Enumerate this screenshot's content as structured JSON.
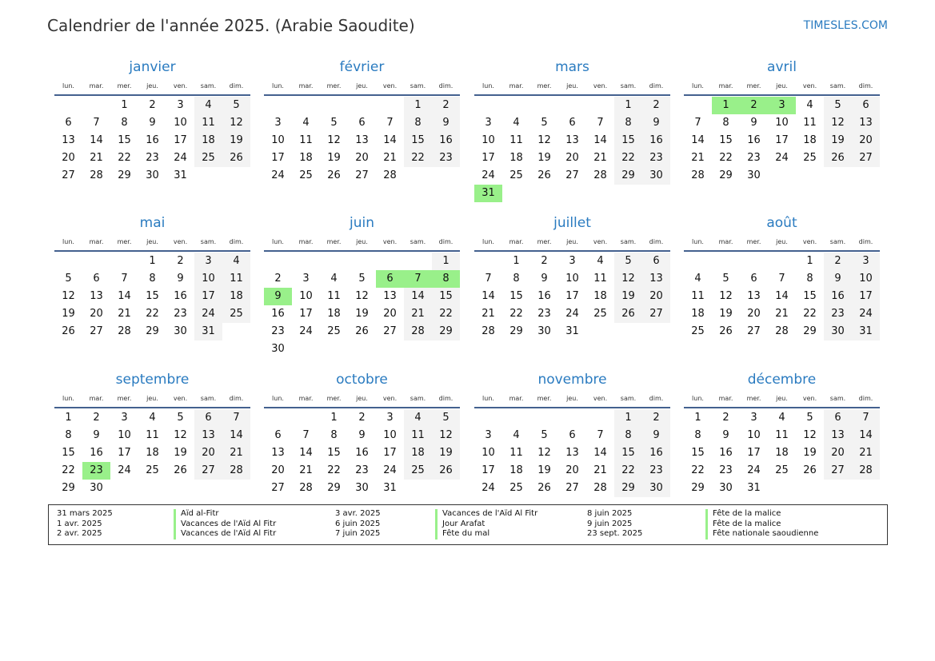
{
  "title": "Calendrier de l'année 2025. (Arabie Saoudite)",
  "site": "TIMESLES.COM",
  "day_names": [
    "lun.",
    "mar.",
    "mer.",
    "jeu.",
    "ven.",
    "sam.",
    "dim."
  ],
  "colors": {
    "accent": "#2a7bc0",
    "holiday": "#99f08a",
    "weekend": "#f3f3f3",
    "rule": "#44618f"
  },
  "months": [
    {
      "name": "janvier",
      "first_weekday": 3,
      "days": 31,
      "holidays": []
    },
    {
      "name": "février",
      "first_weekday": 6,
      "days": 28,
      "holidays": []
    },
    {
      "name": "mars",
      "first_weekday": 6,
      "days": 31,
      "holidays": [
        31
      ]
    },
    {
      "name": "avril",
      "first_weekday": 2,
      "days": 30,
      "holidays": [
        1,
        2,
        3
      ]
    },
    {
      "name": "mai",
      "first_weekday": 4,
      "days": 31,
      "holidays": []
    },
    {
      "name": "juin",
      "first_weekday": 7,
      "days": 30,
      "holidays": [
        6,
        7,
        8,
        9
      ]
    },
    {
      "name": "juillet",
      "first_weekday": 2,
      "days": 31,
      "holidays": []
    },
    {
      "name": "août",
      "first_weekday": 5,
      "days": 31,
      "holidays": []
    },
    {
      "name": "septembre",
      "first_weekday": 1,
      "days": 30,
      "holidays": [
        23
      ]
    },
    {
      "name": "octobre",
      "first_weekday": 3,
      "days": 31,
      "holidays": []
    },
    {
      "name": "novembre",
      "first_weekday": 6,
      "days": 30,
      "holidays": []
    },
    {
      "name": "décembre",
      "first_weekday": 1,
      "days": 31,
      "holidays": []
    }
  ],
  "legend": [
    [
      {
        "date": "31 mars 2025",
        "name": "Aïd al-Fitr"
      },
      {
        "date": "1 avr. 2025",
        "name": "Vacances de l'Aïd Al Fitr"
      },
      {
        "date": "2 avr. 2025",
        "name": "Vacances de l'Aïd Al Fitr"
      }
    ],
    [
      {
        "date": "3 avr. 2025",
        "name": "Vacances de l'Aïd Al Fitr"
      },
      {
        "date": "6 juin 2025",
        "name": "Jour Arafat"
      },
      {
        "date": "7 juin 2025",
        "name": "Fête du mal"
      }
    ],
    [
      {
        "date": "8 juin 2025",
        "name": "Fête de la malice"
      },
      {
        "date": "9 juin 2025",
        "name": "Fête de la malice"
      },
      {
        "date": "23 sept. 2025",
        "name": "Fête nationale saoudienne"
      }
    ]
  ]
}
